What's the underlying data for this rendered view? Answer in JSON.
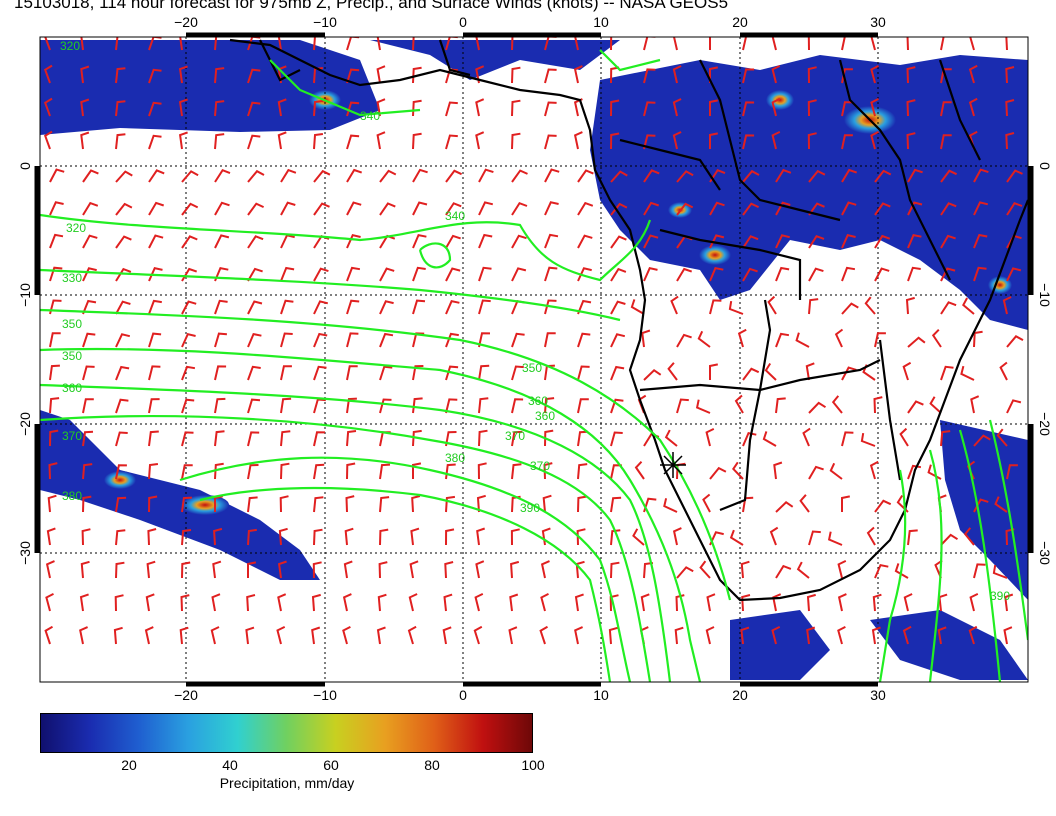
{
  "title": "15103018, 114 hour forecast for 975mb Z, Precip., and Surface Winds (knots) -- NASA GEOS5",
  "map": {
    "lon_range": [
      -30,
      40
    ],
    "lat_range": [
      -40,
      10
    ],
    "top_lon_labels": [
      "−20",
      "−10",
      "0",
      "10",
      "20",
      "30"
    ],
    "bottom_lon_labels": [
      "−20",
      "−10",
      "0",
      "10",
      "20",
      "30"
    ],
    "left_lat_labels": [
      "0",
      "−10",
      "−20",
      "−30"
    ],
    "right_lat_labels": [
      "0",
      "−10",
      "−20",
      "−30"
    ],
    "contour_labels": [
      "320",
      "330",
      "340",
      "350",
      "360",
      "370",
      "380",
      "390"
    ],
    "colors": {
      "wind_barbs": "#e02020",
      "contours": "#22ee22",
      "coastlines": "#000000",
      "precip_low": "#10106e",
      "precip_high": "#6e0808"
    }
  },
  "colorbar": {
    "ticks": [
      "20",
      "40",
      "60",
      "80",
      "100"
    ],
    "label": "Precipitation, mm/day"
  }
}
